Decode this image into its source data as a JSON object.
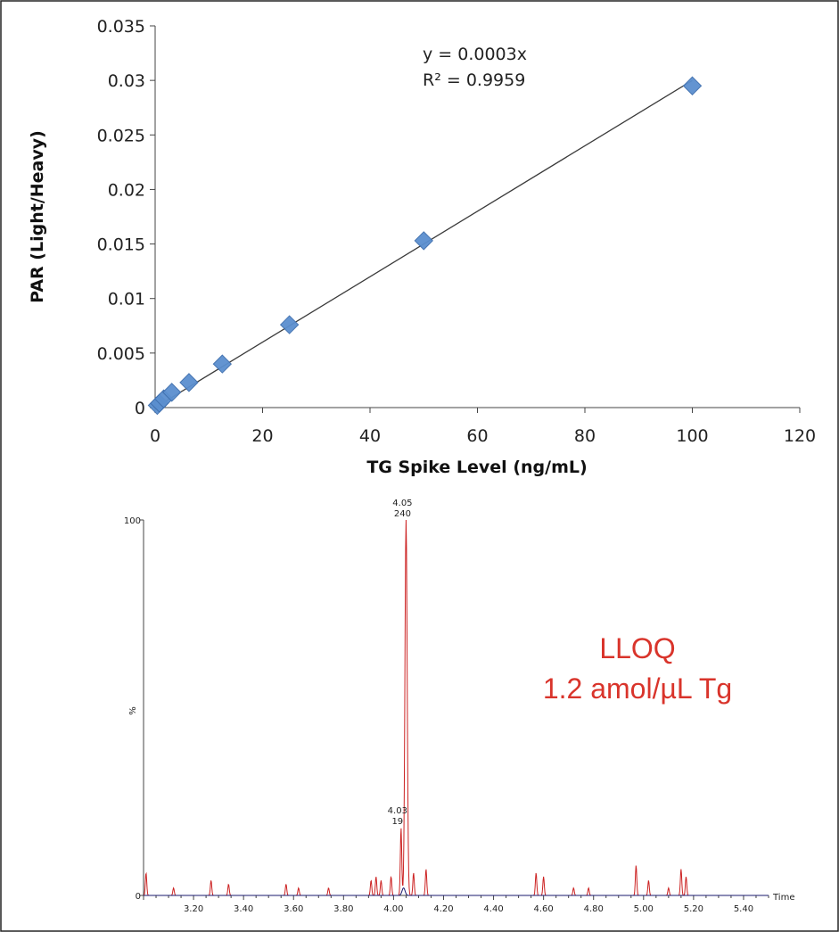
{
  "chart_data": [
    {
      "type": "scatter",
      "xlabel": "TG Spike Level (ng/mL)",
      "ylabel": "PAR (Light/Heavy)",
      "xlim": [
        0,
        120
      ],
      "ylim": [
        0,
        0.035
      ],
      "x_ticks": [
        "0",
        "20",
        "40",
        "60",
        "80",
        "100",
        "120"
      ],
      "y_ticks": [
        "0",
        "0.005",
        "0.01",
        "0.015",
        "0.02",
        "0.025",
        "0.03",
        "0.035"
      ],
      "series": [
        {
          "x": [
            0.4,
            0.8,
            1.6,
            3.1,
            6.3,
            12.5,
            25,
            50,
            100
          ],
          "y": [
            0.0002,
            0.0004,
            0.0008,
            0.0014,
            0.0023,
            0.004,
            0.0076,
            0.0153,
            0.0295
          ],
          "color": "#5b8fcf"
        }
      ],
      "trendline": {
        "slope": 0.0003,
        "x_range": [
          0,
          100
        ],
        "color": "#3a3a3a"
      },
      "annotations": [
        "y = 0.0003x",
        "R² = 0.9959"
      ],
      "grid": false
    },
    {
      "type": "line",
      "xlabel": "Time",
      "ylabel": "%",
      "xlim": [
        3.0,
        5.5
      ],
      "ylim": [
        0,
        100
      ],
      "y_ticks": [
        "0",
        "100"
      ],
      "x_ticks": [
        "3.20",
        "3.40",
        "3.60",
        "3.80",
        "4.00",
        "4.20",
        "4.40",
        "4.60",
        "4.80",
        "5.00",
        "5.20",
        "5.40"
      ],
      "peak_labels": [
        {
          "rt": "4.05",
          "value": "240",
          "x": 4.05,
          "y": 100
        },
        {
          "rt": "4.03",
          "value": "19",
          "x": 4.03,
          "y": 18
        }
      ],
      "series": [
        {
          "color": "#cc2222",
          "peaks": [
            [
              3.01,
              6
            ],
            [
              3.12,
              2
            ],
            [
              3.27,
              4
            ],
            [
              3.34,
              3
            ],
            [
              3.57,
              3
            ],
            [
              3.62,
              2
            ],
            [
              3.74,
              2
            ],
            [
              3.91,
              4
            ],
            [
              3.93,
              5
            ],
            [
              3.95,
              4
            ],
            [
              3.99,
              5
            ],
            [
              4.03,
              18
            ],
            [
              4.05,
              100
            ],
            [
              4.08,
              6
            ],
            [
              4.13,
              7
            ],
            [
              4.57,
              6
            ],
            [
              4.6,
              5
            ],
            [
              4.72,
              2
            ],
            [
              4.78,
              2
            ],
            [
              4.97,
              8
            ],
            [
              5.02,
              4
            ],
            [
              5.1,
              2
            ],
            [
              5.15,
              7
            ],
            [
              5.17,
              5
            ]
          ]
        },
        {
          "color": "#1a1a6e",
          "peaks": [
            [
              4.04,
              2
            ]
          ]
        }
      ],
      "grid": false
    }
  ],
  "overlay": {
    "lloq_line1": "LLOQ",
    "lloq_line2": "1.2 amol/µL Tg"
  }
}
